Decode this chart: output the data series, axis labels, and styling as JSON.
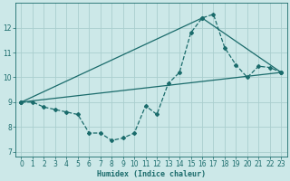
{
  "xlabel": "Humidex (Indice chaleur)",
  "bg_color": "#cce8e8",
  "line_color": "#1a6b6b",
  "grid_color": "#aacece",
  "xlim": [
    -0.5,
    23.5
  ],
  "ylim": [
    6.8,
    13.0
  ],
  "yticks": [
    7,
    8,
    9,
    10,
    11,
    12
  ],
  "xticks": [
    0,
    1,
    2,
    3,
    4,
    5,
    6,
    7,
    8,
    9,
    10,
    11,
    12,
    13,
    14,
    15,
    16,
    17,
    18,
    19,
    20,
    21,
    22,
    23
  ],
  "line1_x": [
    0,
    1,
    2,
    3,
    4,
    5,
    6,
    7,
    8,
    9,
    10,
    11,
    12,
    13,
    14,
    15,
    16,
    17,
    18,
    19,
    20,
    21,
    22,
    23
  ],
  "line1_y": [
    9.0,
    9.0,
    8.8,
    8.7,
    8.6,
    8.5,
    7.75,
    7.75,
    7.45,
    7.55,
    7.75,
    8.85,
    8.5,
    9.75,
    10.2,
    11.8,
    12.4,
    12.55,
    11.2,
    10.5,
    10.0,
    10.45,
    10.4,
    10.2
  ],
  "line2_x": [
    0,
    23
  ],
  "line2_y": [
    9.0,
    10.2
  ],
  "line3_x": [
    0,
    16,
    23
  ],
  "line3_y": [
    9.0,
    12.4,
    10.2
  ]
}
